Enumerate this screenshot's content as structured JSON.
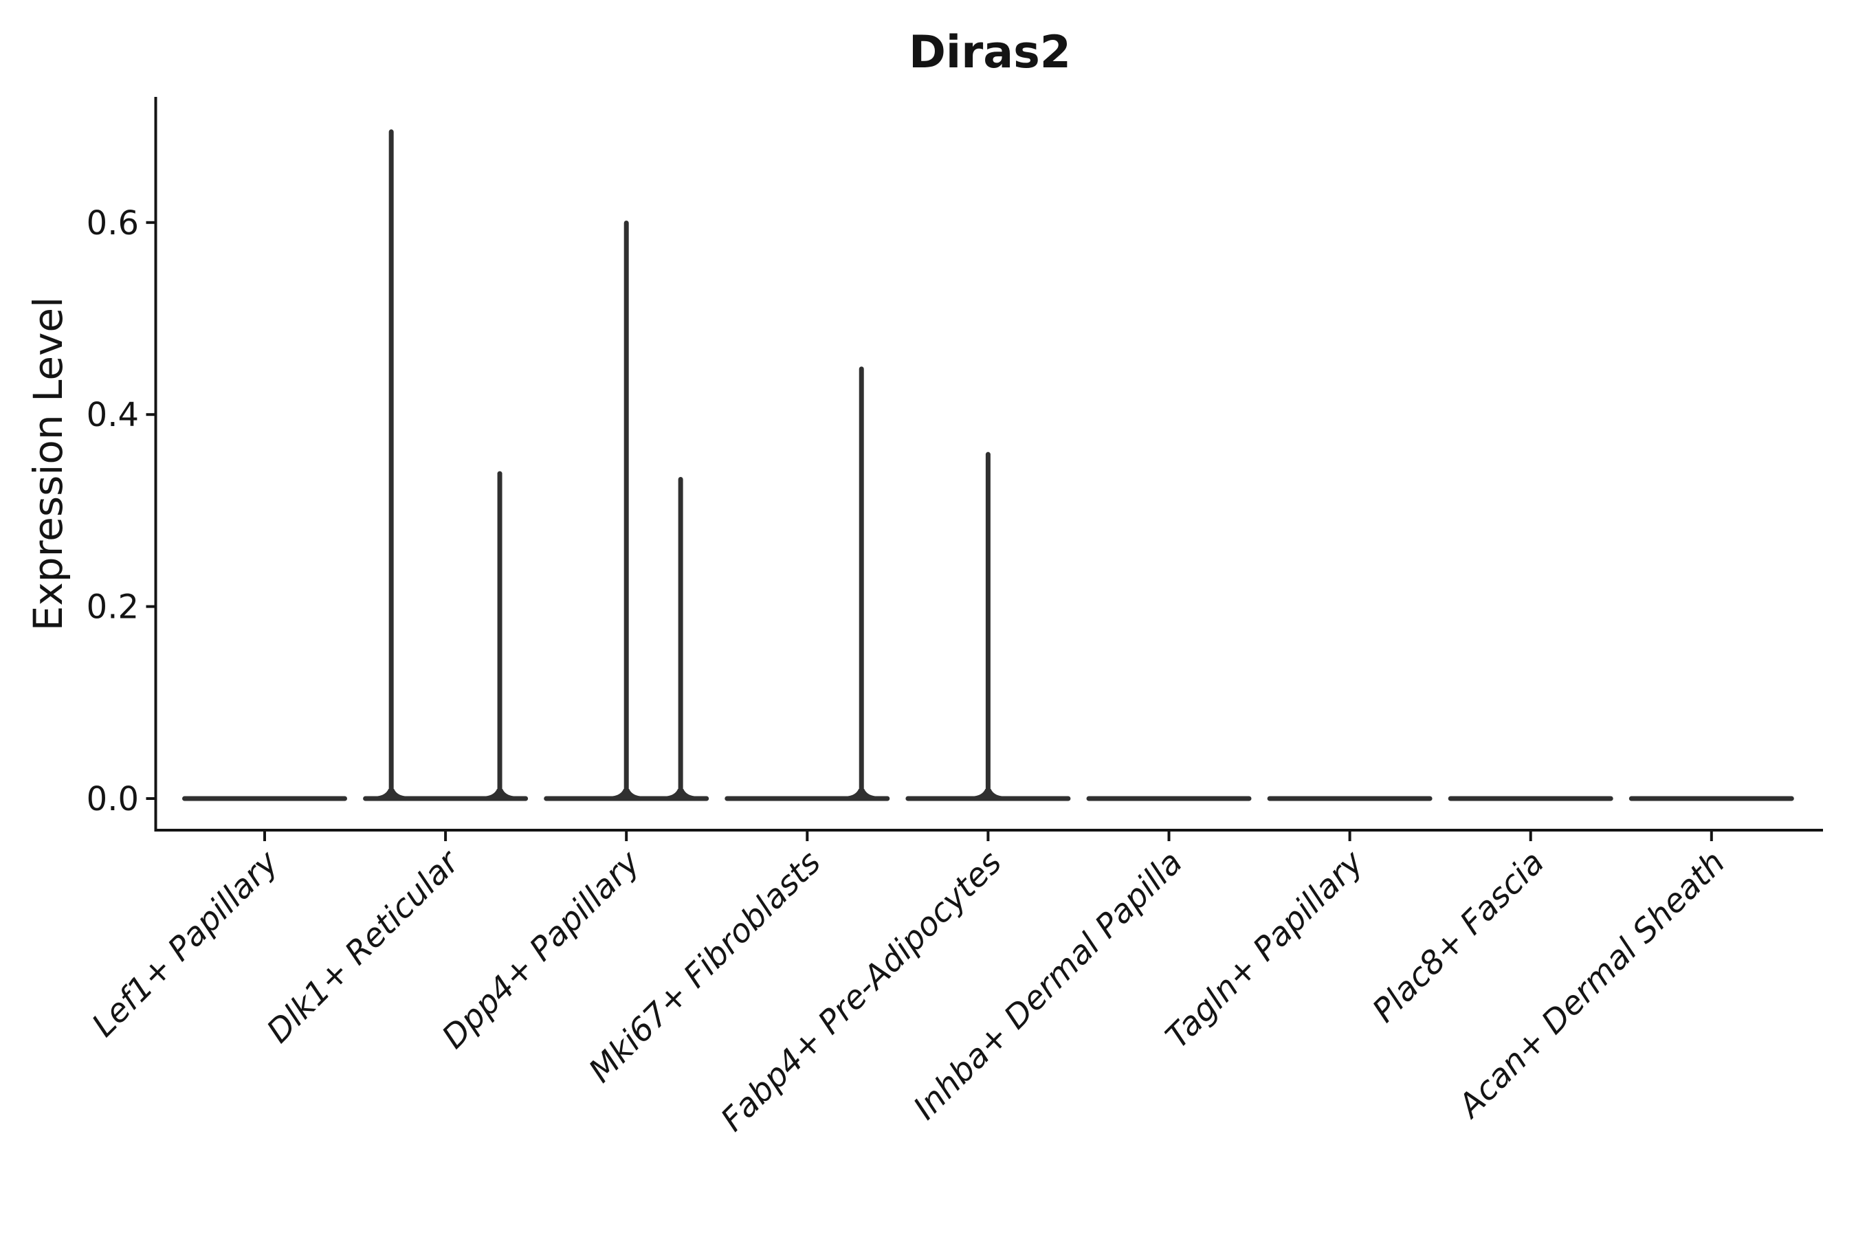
{
  "figure": {
    "title": "Diras2",
    "ylabel": "Expression Level"
  },
  "chart_data": {
    "type": "violin",
    "title": "Diras2",
    "xlabel": "",
    "ylabel": "Expression Level",
    "categories": [
      "Lef1+ Papillary",
      "Dlk1+ Reticular",
      "Dpp4+ Papillary",
      "Mki67+ Fibroblasts",
      "Fabp4+ Pre-Adipocytes",
      "Inhba+ Dermal Papilla",
      "Tagln+ Papillary",
      "Plac8+ Fascia",
      "Acan+ Dermal Sheath"
    ],
    "ytick_labels": [
      "0.0",
      "0.2",
      "0.4",
      "0.6"
    ],
    "yticks": [
      0.0,
      0.2,
      0.4,
      0.6
    ],
    "ylim": [
      -0.035,
      0.732
    ],
    "grid": false,
    "legend_position": "none",
    "violin_color": "#303030",
    "axis_color": "#141414",
    "series": [
      {
        "name": "Lef1+ Papillary",
        "base_value": 0.0,
        "spikes": []
      },
      {
        "name": "Dlk1+ Reticular",
        "base_value": 0.0,
        "spikes": [
          {
            "offset": -0.3,
            "max": 0.697
          },
          {
            "offset": 0.3,
            "max": 0.341
          }
        ]
      },
      {
        "name": "Dpp4+ Papillary",
        "base_value": 0.0,
        "spikes": [
          {
            "offset": 0.0,
            "max": 0.602
          },
          {
            "offset": 0.3,
            "max": 0.335
          }
        ]
      },
      {
        "name": "Mki67+ Fibroblasts",
        "base_value": 0.0,
        "spikes": [
          {
            "offset": 0.3,
            "max": 0.45
          }
        ]
      },
      {
        "name": "Fabp4+ Pre-Adipocytes",
        "base_value": 0.0,
        "spikes": [
          {
            "offset": 0.0,
            "max": 0.361
          }
        ]
      },
      {
        "name": "Inhba+ Dermal Papilla",
        "base_value": 0.0,
        "spikes": []
      },
      {
        "name": "Tagln+ Papillary",
        "base_value": 0.0,
        "spikes": []
      },
      {
        "name": "Plac8+ Fascia",
        "base_value": 0.0,
        "spikes": []
      },
      {
        "name": "Acan+ Dermal Sheath",
        "base_value": 0.0,
        "spikes": []
      }
    ]
  }
}
